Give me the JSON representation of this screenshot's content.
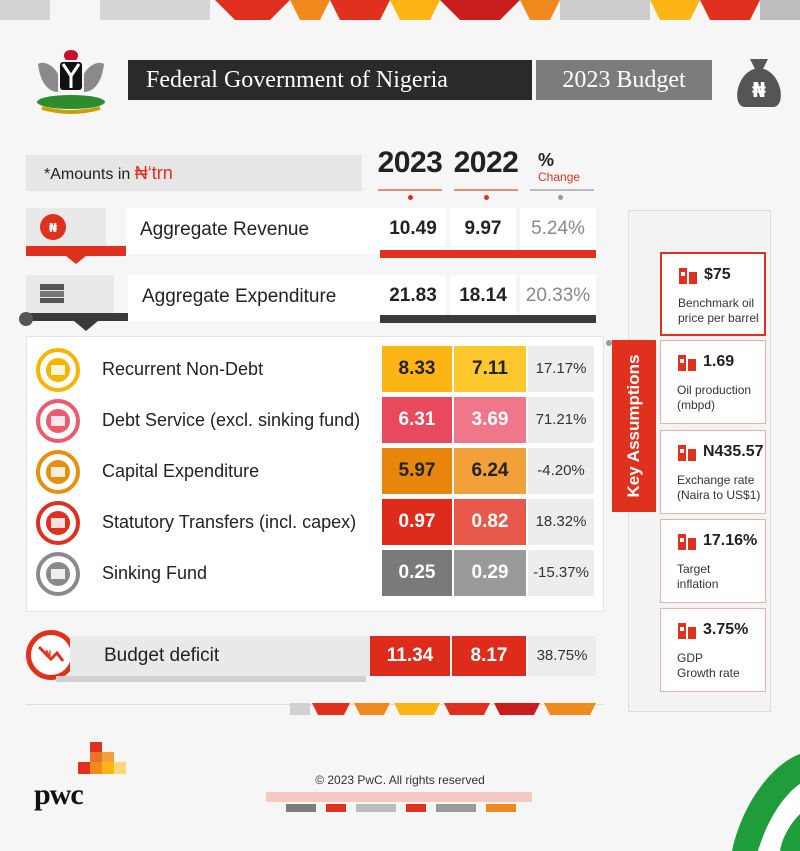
{
  "header": {
    "title": "Federal Government of Nigeria",
    "year_title": "2023 Budget"
  },
  "amounts_note": {
    "prefix": "*Amounts in ",
    "unit": "₦‘trn"
  },
  "columns": {
    "y2023": "2023",
    "y2022": "2022",
    "pct": "%",
    "change": "Change"
  },
  "aggregates": [
    {
      "label": "Aggregate Revenue",
      "v2023": "10.49",
      "v2022": "9.97",
      "pct": "5.24%"
    },
    {
      "label": "Aggregate Expenditure",
      "v2023": "21.83",
      "v2022": "18.14",
      "pct": "20.33%"
    }
  ],
  "breakdown": [
    {
      "label": "Recurrent Non-Debt",
      "v2023": "8.33",
      "v2022": "7.11",
      "pct": "17.17%",
      "c2023": "#fdb515",
      "c2022": "#ffc82e",
      "icon": "ledger-icon",
      "ring": "#f7b500"
    },
    {
      "label": "Debt Service (excl. sinking fund)",
      "v2023": "6.31",
      "v2022": "3.69",
      "pct": "71.21%",
      "c2023": "#e8495c",
      "c2022": "#f07789",
      "icon": "debt-icon",
      "ring": "#eb5b6e"
    },
    {
      "label": "Capital Expenditure",
      "v2023": "5.97",
      "v2022": "6.24",
      "pct": "-4.20%",
      "c2023": "#e8860c",
      "c2022": "#f2a03a",
      "icon": "capital-icon",
      "ring": "#e6900f"
    },
    {
      "label": "Statutory Transfers (incl. capex)",
      "v2023": "0.97",
      "v2022": "0.82",
      "pct": "18.32%",
      "c2023": "#dd2b1c",
      "c2022": "#e8594b",
      "icon": "transfer-icon",
      "ring": "#dc3020"
    },
    {
      "label": "Sinking Fund",
      "v2023": "0.25",
      "v2022": "0.29",
      "pct": "-15.37%",
      "c2023": "#7a7a7a",
      "c2022": "#9a9a9a",
      "icon": "sinking-fund-icon",
      "ring": "#8a8a8a"
    }
  ],
  "deficit": {
    "label": "Budget deficit",
    "v2023": "11.34",
    "v2022": "8.17",
    "pct": "38.75%"
  },
  "key_assumptions": {
    "title": "Key Assumptions",
    "items": [
      {
        "value": "$75",
        "desc": [
          "Benchmark oil",
          "price per barrel"
        ],
        "icon": "oil-barrel-icon"
      },
      {
        "value": "1.69",
        "desc": [
          "Oil production",
          "(mbpd)"
        ],
        "icon": "oil-pump-icon"
      },
      {
        "value": "N435.57",
        "desc": [
          "Exchange rate",
          "(Naira to US$1)"
        ],
        "icon": "exchange-icon"
      },
      {
        "value": "17.16%",
        "desc": [
          "Target",
          "inflation"
        ],
        "icon": "inflation-chart-icon"
      },
      {
        "value": "3.75%",
        "desc": [
          "GDP",
          "Growth rate"
        ],
        "icon": "gdp-chart-icon"
      }
    ]
  },
  "footer": {
    "copyright": "© 2023 PwC. All rights reserved",
    "logo": "pwc"
  },
  "colors": {
    "accent": "#e0301e",
    "dark": "#2a2a2a",
    "grey": "#7c7c7c"
  }
}
